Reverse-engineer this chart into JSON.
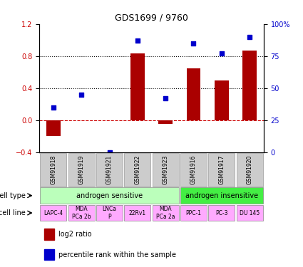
{
  "title": "GDS1699 / 9760",
  "samples": [
    "GSM91918",
    "GSM91919",
    "GSM91921",
    "GSM91922",
    "GSM91923",
    "GSM91916",
    "GSM91917",
    "GSM91920"
  ],
  "log2_ratio": [
    -0.2,
    0.0,
    0.0,
    0.83,
    -0.05,
    0.65,
    0.5,
    0.87
  ],
  "percentile_rank": [
    35,
    45,
    0,
    87,
    42,
    85,
    77,
    90
  ],
  "cell_types": [
    {
      "label": "androgen sensitive",
      "start": 0,
      "end": 5,
      "color": "#bbffbb"
    },
    {
      "label": "androgen insensitive",
      "start": 5,
      "end": 8,
      "color": "#44ee44"
    }
  ],
  "cell_lines": [
    {
      "label": "LAPC-4",
      "start": 0,
      "end": 1
    },
    {
      "label": "MDA\nPCa 2b",
      "start": 1,
      "end": 2
    },
    {
      "label": "LNCa\nP",
      "start": 2,
      "end": 3
    },
    {
      "label": "22Rv1",
      "start": 3,
      "end": 4
    },
    {
      "label": "MDA\nPCa 2a",
      "start": 4,
      "end": 5
    },
    {
      "label": "PPC-1",
      "start": 5,
      "end": 6
    },
    {
      "label": "PC-3",
      "start": 6,
      "end": 7
    },
    {
      "label": "DU 145",
      "start": 7,
      "end": 8
    }
  ],
  "cell_line_color": "#ffaaff",
  "bar_color": "#aa0000",
  "dot_color": "#0000cc",
  "ylim_left": [
    -0.4,
    1.2
  ],
  "ylim_right": [
    0,
    100
  ],
  "yticks_left": [
    -0.4,
    0.0,
    0.4,
    0.8,
    1.2
  ],
  "yticks_right": [
    0,
    25,
    50,
    75,
    100
  ],
  "ytick_labels_right": [
    "0",
    "25",
    "50",
    "75",
    "100%"
  ],
  "hline_y": [
    0.0,
    0.4,
    0.8
  ],
  "hline_styles": [
    "--",
    ":",
    ":"
  ],
  "hline_colors": [
    "#cc0000",
    "#000000",
    "#000000"
  ],
  "sample_box_color": "#cccccc",
  "legend_bar_label": "log2 ratio",
  "legend_dot_label": "percentile rank within the sample",
  "cell_type_label": "cell type",
  "cell_line_label": "cell line"
}
